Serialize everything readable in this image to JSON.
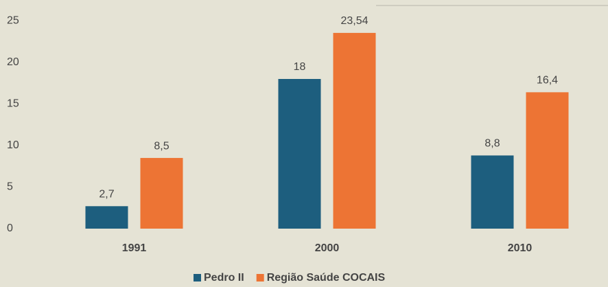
{
  "chart_data": {
    "type": "bar",
    "categories": [
      "1991",
      "2000",
      "2010"
    ],
    "series": [
      {
        "name": "Pedro II",
        "color": "#1d5e7e",
        "values": [
          2.7,
          18,
          8.8
        ],
        "value_labels": [
          "2,7",
          "18",
          "8,8"
        ]
      },
      {
        "name": "Região Saúde COCAIS",
        "color": "#ed7434",
        "values": [
          8.5,
          23.54,
          16.4
        ],
        "value_labels": [
          "8,5",
          "23,54",
          "16,4"
        ]
      }
    ],
    "ylim": [
      0,
      27
    ],
    "yticks": [
      0,
      5,
      10,
      15,
      20,
      25
    ],
    "grid": false,
    "legend": "bottom"
  }
}
